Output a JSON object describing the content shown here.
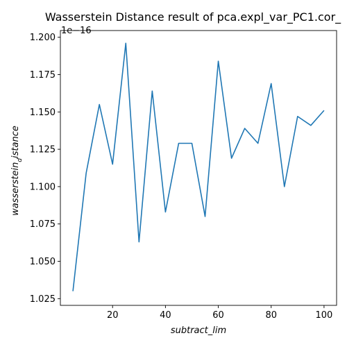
{
  "chart_data": {
    "type": "line",
    "title": "Wasserstein Distance result of pca.expl_var_PC1.cor_",
    "xlabel": "subtract_lim",
    "ylabel_main": "wasserstein",
    "ylabel_sub": "d",
    "ylabel_rest": "istance",
    "y_offset_text": "1e−16",
    "xlim": [
      0.25,
      104.75
    ],
    "ylim": [
      1.0205,
      1.2045
    ],
    "x_ticks": [
      20,
      40,
      60,
      80,
      100
    ],
    "x_tick_labels": [
      "20",
      "40",
      "60",
      "80",
      "100"
    ],
    "y_ticks": [
      1.025,
      1.05,
      1.075,
      1.1,
      1.125,
      1.15,
      1.175,
      1.2
    ],
    "y_tick_labels": [
      "1.025",
      "1.050",
      "1.075",
      "1.100",
      "1.125",
      "1.150",
      "1.175",
      "1.200"
    ],
    "grid": false,
    "line_color": "#1f77b4",
    "series": [
      {
        "x": [
          5,
          10,
          15,
          20,
          25,
          30,
          35,
          40,
          45,
          50,
          55,
          60,
          65,
          70,
          75,
          80,
          85,
          90,
          95,
          100
        ],
        "y": [
          1.03,
          1.109,
          1.155,
          1.115,
          1.196,
          1.063,
          1.164,
          1.083,
          1.129,
          1.129,
          1.08,
          1.184,
          1.119,
          1.139,
          1.129,
          1.169,
          1.1,
          1.147,
          1.141,
          1.151
        ]
      }
    ]
  }
}
